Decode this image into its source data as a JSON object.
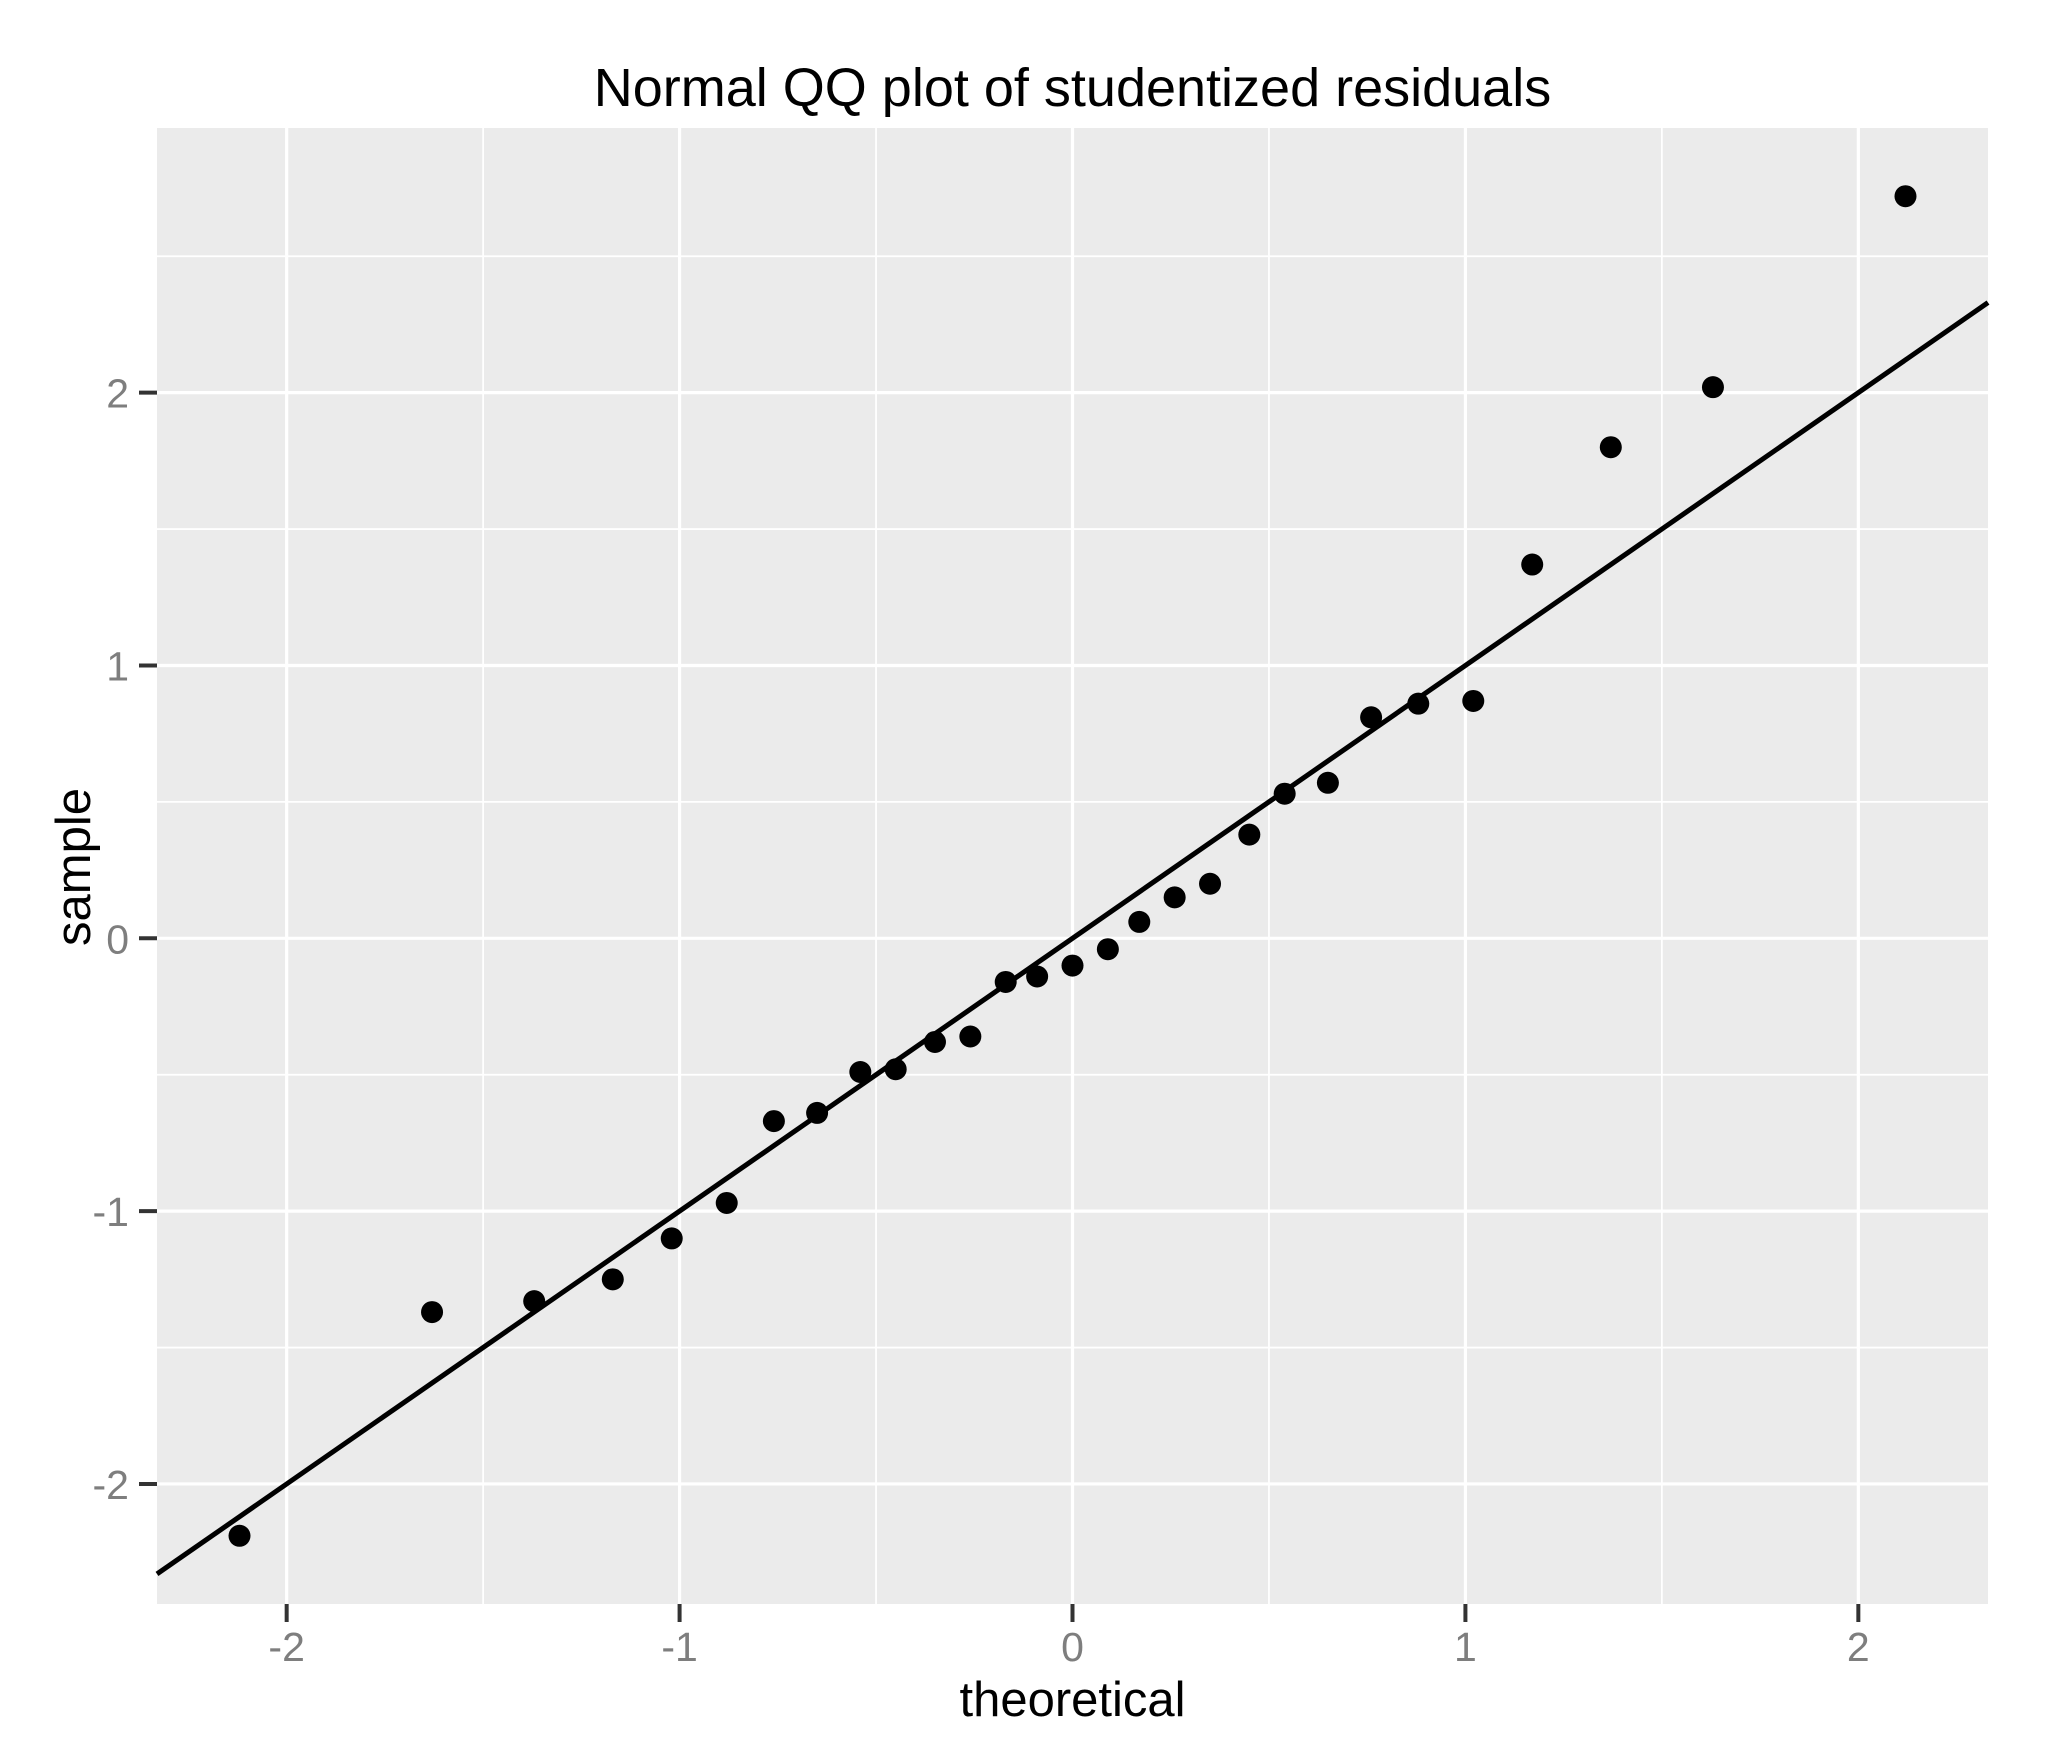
{
  "chart_data": {
    "type": "scatter",
    "title": "Normal QQ plot of studentized residuals",
    "xlabel": "theoretical",
    "ylabel": "sample",
    "xlim": [
      -2.33,
      2.33
    ],
    "ylim": [
      -2.44,
      2.97
    ],
    "x_major_ticks": [
      -2,
      -1,
      0,
      1,
      2
    ],
    "y_major_ticks": [
      -2,
      -1,
      0,
      1,
      2
    ],
    "x_minor_ticks": [
      -1.5,
      -0.5,
      0.5,
      1.5
    ],
    "y_minor_ticks": [
      -1.5,
      -0.5,
      0.5,
      1.5,
      2.5
    ],
    "grid": "on",
    "legend_position": "none",
    "n_points": 29,
    "series": [
      {
        "name": "studentized residuals",
        "points": [
          {
            "x": -2.12,
            "y": -2.19
          },
          {
            "x": -1.63,
            "y": -1.37
          },
          {
            "x": -1.37,
            "y": -1.33
          },
          {
            "x": -1.17,
            "y": -1.25
          },
          {
            "x": -1.02,
            "y": -1.1
          },
          {
            "x": -0.88,
            "y": -0.97
          },
          {
            "x": -0.76,
            "y": -0.67
          },
          {
            "x": -0.65,
            "y": -0.64
          },
          {
            "x": -0.54,
            "y": -0.49
          },
          {
            "x": -0.45,
            "y": -0.48
          },
          {
            "x": -0.35,
            "y": -0.38
          },
          {
            "x": -0.26,
            "y": -0.36
          },
          {
            "x": -0.17,
            "y": -0.16
          },
          {
            "x": -0.09,
            "y": -0.14
          },
          {
            "x": 0.0,
            "y": -0.1
          },
          {
            "x": 0.09,
            "y": -0.04
          },
          {
            "x": 0.17,
            "y": 0.06
          },
          {
            "x": 0.26,
            "y": 0.15
          },
          {
            "x": 0.35,
            "y": 0.2
          },
          {
            "x": 0.45,
            "y": 0.38
          },
          {
            "x": 0.54,
            "y": 0.53
          },
          {
            "x": 0.65,
            "y": 0.57
          },
          {
            "x": 0.76,
            "y": 0.81
          },
          {
            "x": 0.88,
            "y": 0.86
          },
          {
            "x": 1.02,
            "y": 0.87
          },
          {
            "x": 1.17,
            "y": 1.37
          },
          {
            "x": 1.37,
            "y": 1.8
          },
          {
            "x": 1.63,
            "y": 2.02
          },
          {
            "x": 2.12,
            "y": 2.72
          }
        ]
      }
    ],
    "reference_line": {
      "slope": 1,
      "intercept": 0,
      "x_start": -2.33,
      "x_end": 2.33
    },
    "style": {
      "panel_background": "#EBEBEB",
      "grid_color": "#FFFFFF",
      "point_color": "#000000",
      "line_color": "#000000",
      "tick_color": "#333333",
      "tick_label_color": "#7E7E7E",
      "text_color": "#000000"
    }
  }
}
